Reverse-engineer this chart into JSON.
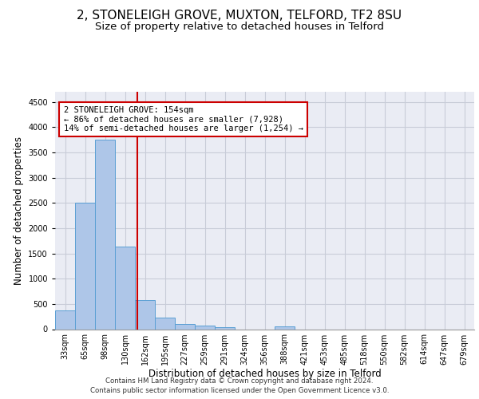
{
  "title_line1": "2, STONELEIGH GROVE, MUXTON, TELFORD, TF2 8SU",
  "title_line2": "Size of property relative to detached houses in Telford",
  "xlabel": "Distribution of detached houses by size in Telford",
  "ylabel": "Number of detached properties",
  "footer_line1": "Contains HM Land Registry data © Crown copyright and database right 2024.",
  "footer_line2": "Contains public sector information licensed under the Open Government Licence v3.0.",
  "bins": [
    "33sqm",
    "65sqm",
    "98sqm",
    "130sqm",
    "162sqm",
    "195sqm",
    "227sqm",
    "259sqm",
    "291sqm",
    "324sqm",
    "356sqm",
    "388sqm",
    "421sqm",
    "453sqm",
    "485sqm",
    "518sqm",
    "550sqm",
    "582sqm",
    "614sqm",
    "647sqm",
    "679sqm"
  ],
  "values": [
    370,
    2500,
    3750,
    1640,
    580,
    225,
    105,
    65,
    40,
    0,
    0,
    55,
    0,
    0,
    0,
    0,
    0,
    0,
    0,
    0,
    0
  ],
  "bar_color": "#aec6e8",
  "bar_edge_color": "#5a9fd4",
  "grid_color": "#c8ccd8",
  "bg_color": "#eaecf4",
  "annotation_box_color": "#cc0000",
  "vline_color": "#cc0000",
  "vline_position": 3.62,
  "ylim": [
    0,
    4700
  ],
  "yticks": [
    0,
    500,
    1000,
    1500,
    2000,
    2500,
    3000,
    3500,
    4000,
    4500
  ],
  "annotation_text_line1": "2 STONELEIGH GROVE: 154sqm",
  "annotation_text_line2": "← 86% of detached houses are smaller (7,928)",
  "annotation_text_line3": "14% of semi-detached houses are larger (1,254) →",
  "title_fontsize": 11,
  "subtitle_fontsize": 9.5,
  "axis_label_fontsize": 8.5,
  "tick_fontsize": 7,
  "annotation_fontsize": 7.5,
  "footer_fontsize": 6.2
}
